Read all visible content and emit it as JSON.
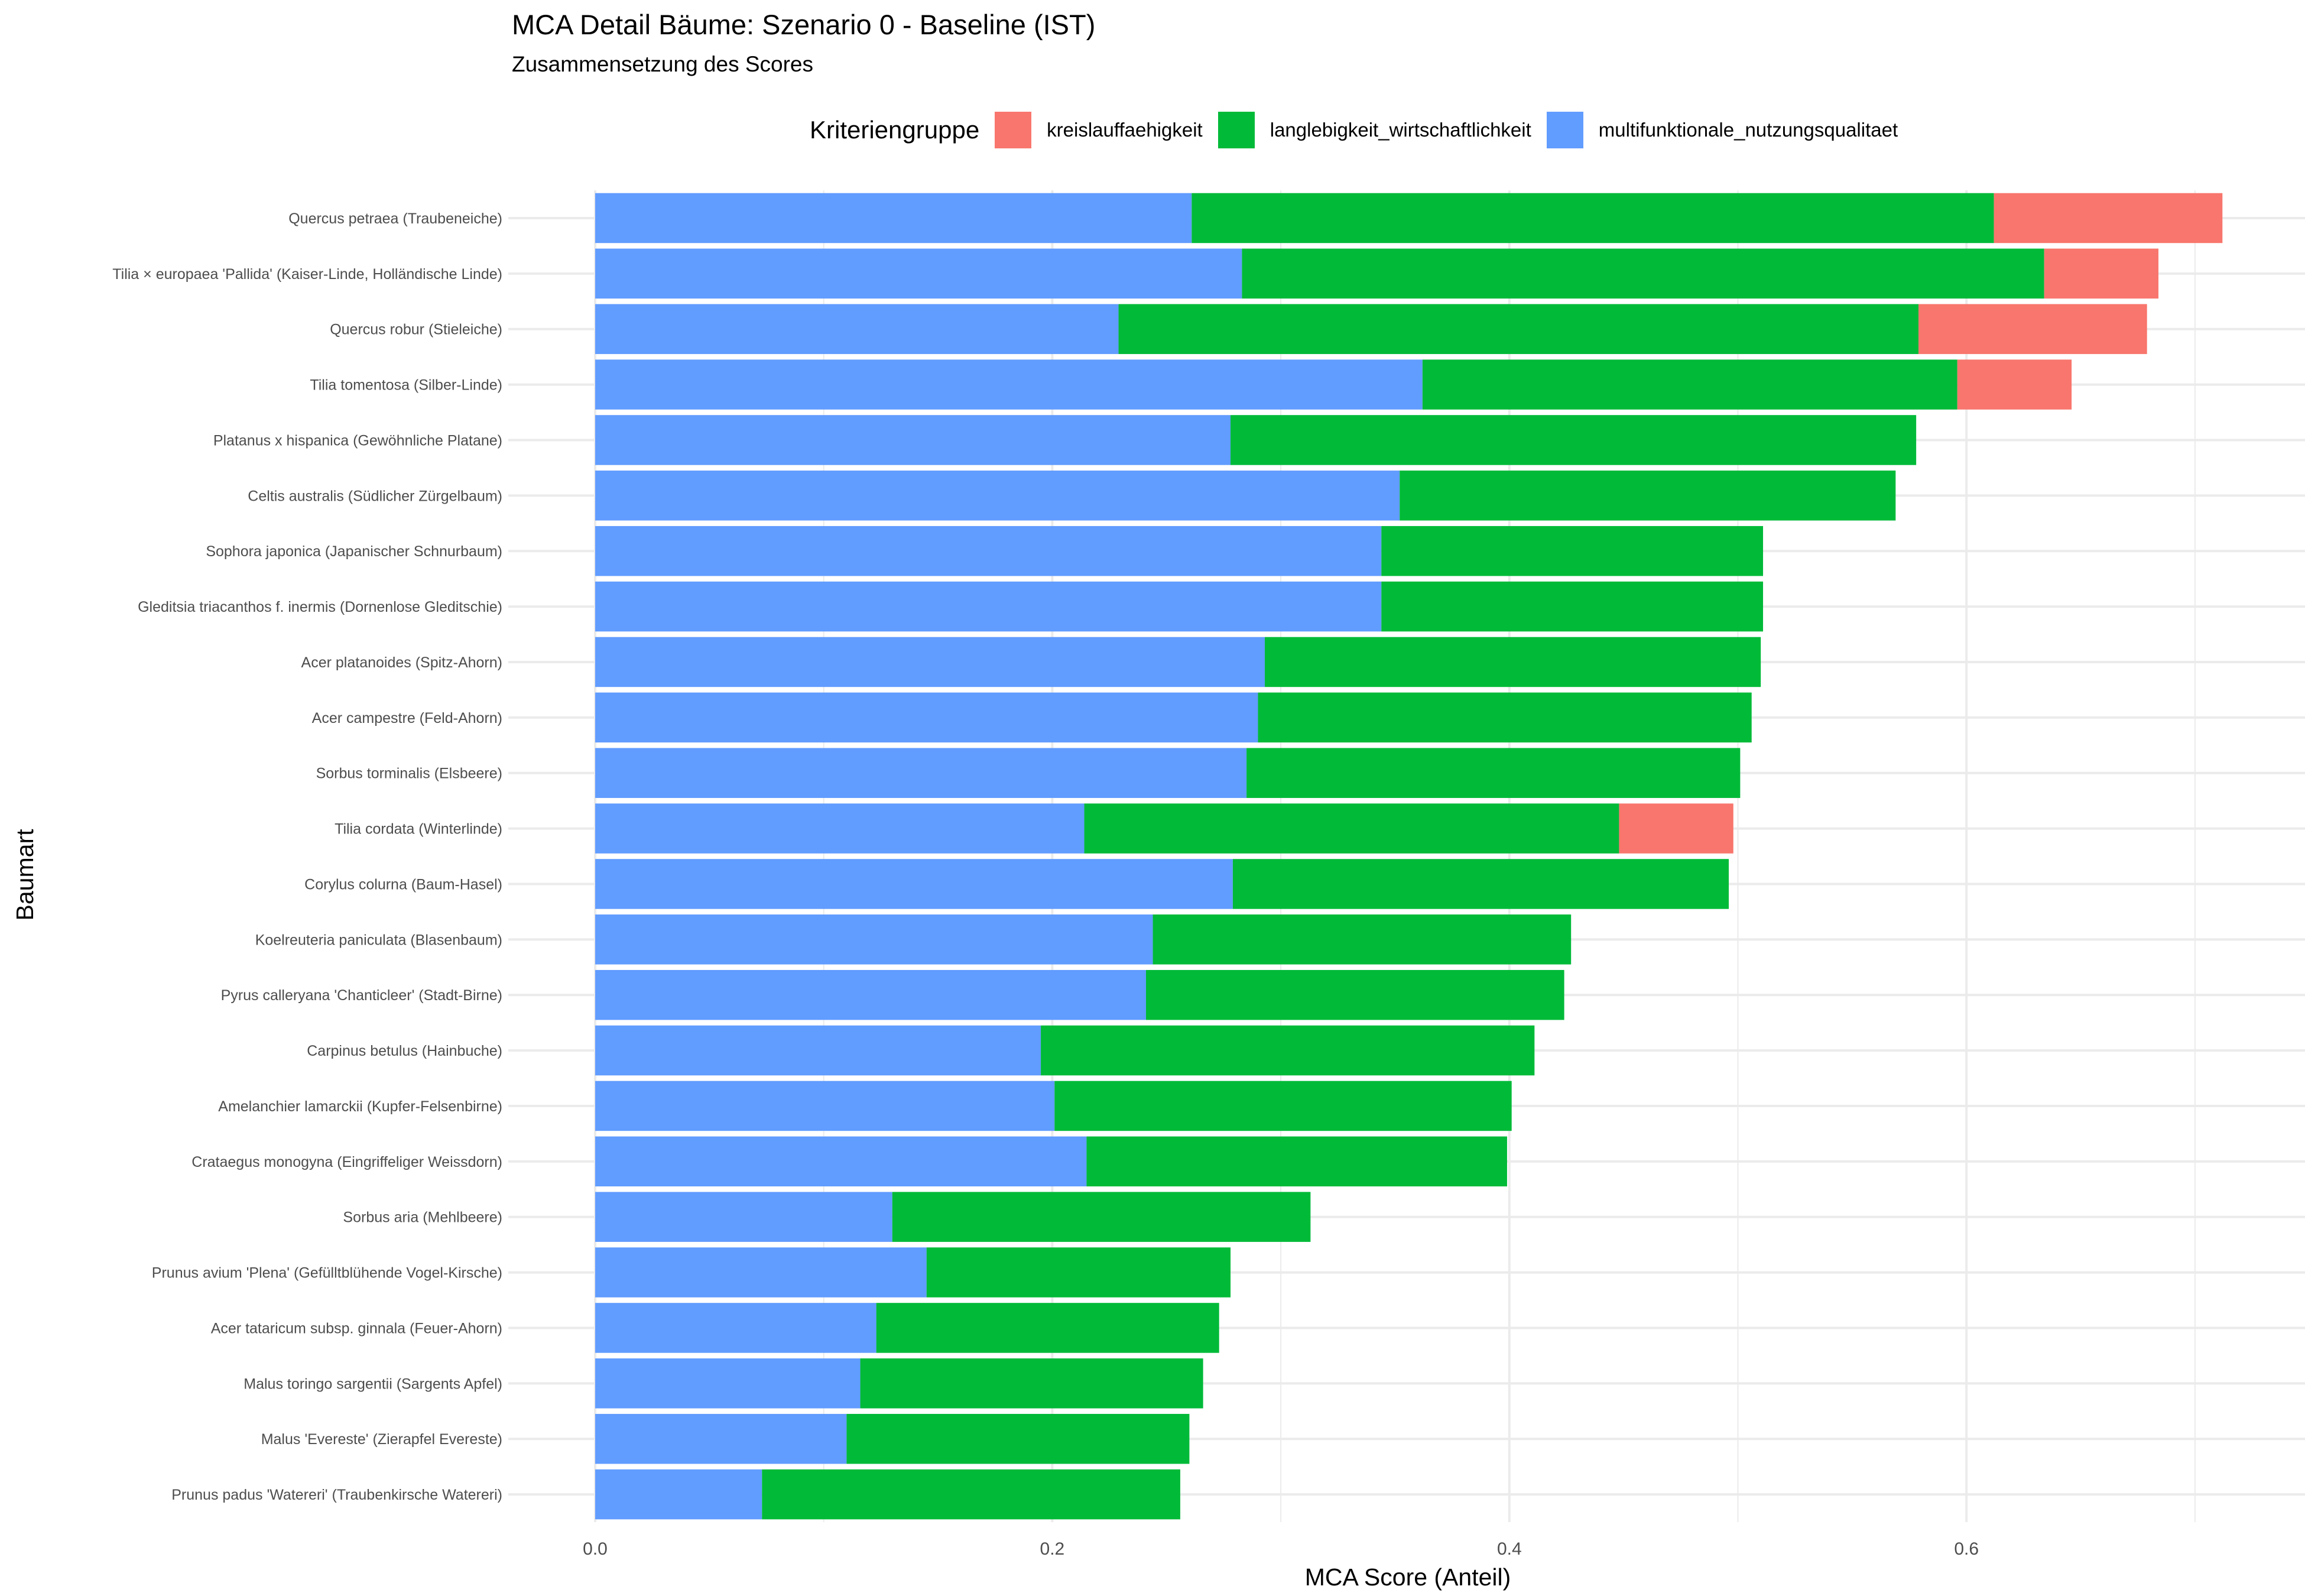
{
  "chart_data": {
    "type": "bar",
    "stacked": true,
    "orientation": "horizontal",
    "title": "MCA Detail Bäume: Szenario 0 - Baseline (IST)",
    "subtitle": "Zusammensetzung des Scores",
    "xlabel": "MCA Score (Anteil)",
    "ylabel": "Baumart",
    "xlim": [
      -0.102,
      0.75
    ],
    "x_ticks": [
      "0.0",
      "0.2",
      "0.4",
      "0.6"
    ],
    "grid": true,
    "legend": {
      "title": "Kriteriengruppe",
      "position": "top"
    },
    "categories": [
      "Quercus petraea (Traubeneiche)",
      "Tilia × europaea 'Pallida' (Kaiser-Linde, Holländische Linde)",
      "Quercus robur (Stieleiche)",
      "Tilia tomentosa (Silber-Linde)",
      "Platanus x hispanica (Gewöhnliche Platane)",
      "Celtis australis (Südlicher Zürgelbaum)",
      "Sophora japonica (Japanischer Schnurbaum)",
      "Gleditsia triacanthos f. inermis (Dornenlose Gleditschie)",
      "Acer platanoides (Spitz-Ahorn)",
      "Acer campestre (Feld-Ahorn)",
      "Sorbus torminalis (Elsbeere)",
      "Tilia cordata (Winterlinde)",
      "Corylus colurna (Baum-Hasel)",
      "Koelreuteria paniculata (Blasenbaum)",
      "Pyrus calleryana 'Chanticleer' (Stadt-Birne)",
      "Carpinus betulus (Hainbuche)",
      "Amelanchier lamarckii (Kupfer-Felsenbirne)",
      "Crataegus monogyna (Eingriffeliger Weissdorn)",
      "Sorbus aria (Mehlbeere)",
      "Prunus avium 'Plena' (Gefülltblühende Vogel-Kirsche)",
      "Acer tataricum subsp. ginnala (Feuer-Ahorn)",
      "Malus toringo sargentii (Sargents Apfel)",
      "Malus 'Evereste' (Zierapfel Evereste)",
      "Prunus padus 'Watereri' (Traubenkirsche Watereri)"
    ],
    "series": [
      {
        "name": "multifunktionale_nutzungsqualitaet",
        "color": "#619CFF",
        "values": [
          0.261,
          0.283,
          0.229,
          0.362,
          0.278,
          0.352,
          0.344,
          0.344,
          0.293,
          0.29,
          0.285,
          0.214,
          0.279,
          0.244,
          0.241,
          0.195,
          0.201,
          0.215,
          0.13,
          0.145,
          0.123,
          0.116,
          0.11,
          0.073
        ]
      },
      {
        "name": "langlebigkeit_wirtschaftlichkeit",
        "color": "#00BA38",
        "values": [
          0.351,
          0.351,
          0.35,
          0.234,
          0.3,
          0.217,
          0.167,
          0.167,
          0.217,
          0.216,
          0.216,
          0.234,
          0.217,
          0.183,
          0.183,
          0.216,
          0.2,
          0.184,
          0.183,
          0.133,
          0.15,
          0.15,
          0.15,
          0.183
        ]
      },
      {
        "name": "kreislauffaehigkeit",
        "color": "#F8766D",
        "values": [
          0.1,
          0.05,
          0.1,
          0.05,
          0,
          0,
          0,
          0,
          0,
          0,
          0,
          0.05,
          0,
          0,
          0,
          0,
          0,
          0,
          0,
          0,
          0,
          0,
          0,
          0
        ]
      }
    ]
  }
}
